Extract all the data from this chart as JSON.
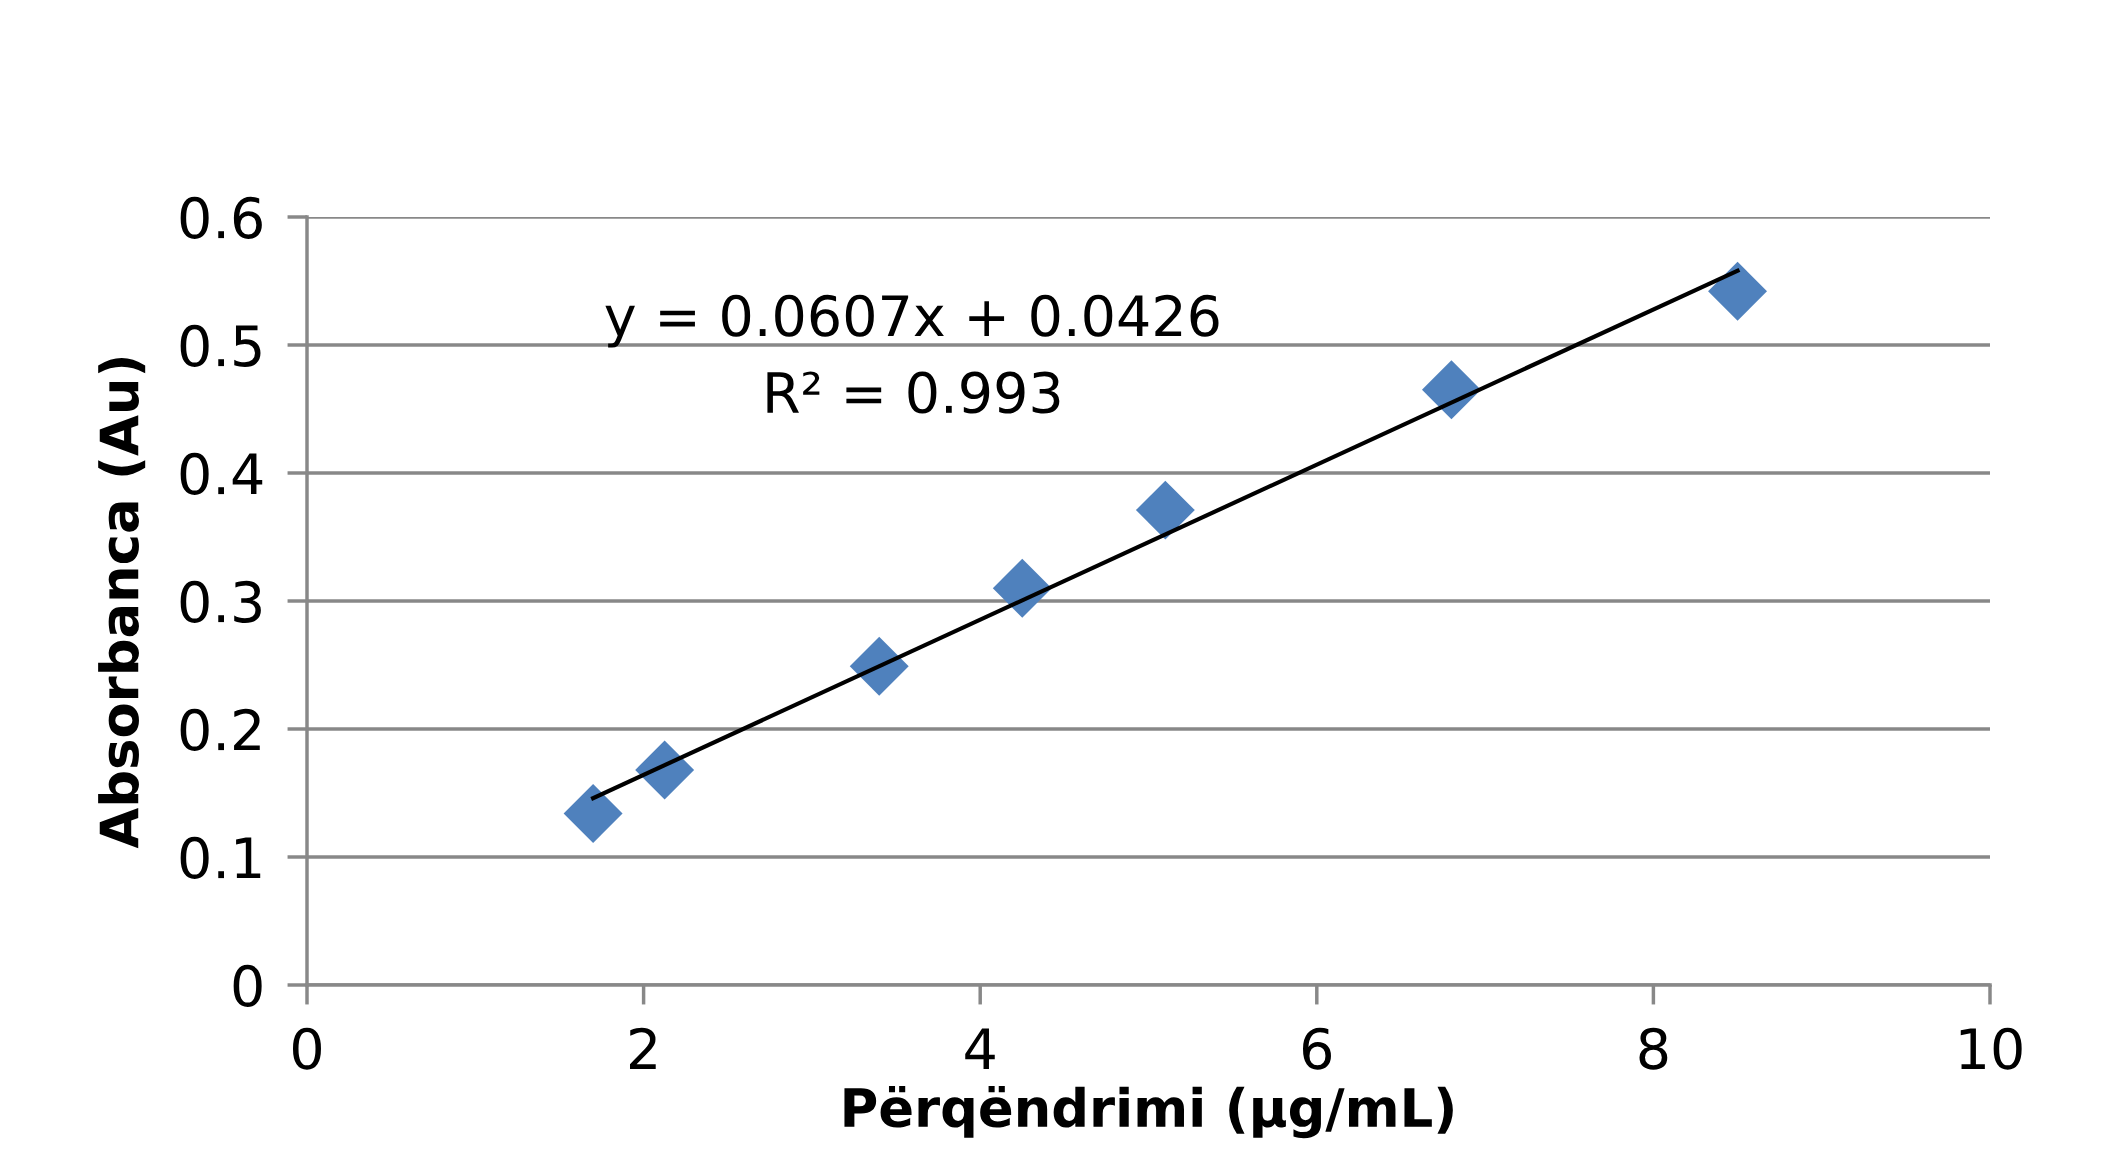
{
  "chart_data": {
    "type": "scatter",
    "xlabel": "Përqëndrimi (µg/mL)",
    "ylabel": "Absorbanca (Au)",
    "x": [
      1.7,
      2.125,
      3.4,
      4.25,
      5.1,
      6.8,
      8.5
    ],
    "series": [
      {
        "color": "#4f81bd",
        "marker": "diamond",
        "values": [
          0.134,
          0.168,
          0.249,
          0.31,
          0.371,
          0.465,
          0.542
        ]
      },
      {
        "type": "line",
        "color": "#000000",
        "marker": "none",
        "line_style": "solid",
        "x": [
          1.7,
          8.5
        ],
        "values": [
          0.146,
          0.558
        ]
      }
    ],
    "annotations": [
      "y = 0.0607x + 0.0426",
      "R² = 0.993"
    ],
    "xlim": [
      0,
      10
    ],
    "xticks": [
      0,
      2,
      4,
      6,
      8,
      10
    ],
    "ylim": [
      0,
      0.6
    ],
    "yticks": [
      0,
      0.1,
      0.2,
      0.3,
      0.4,
      0.5,
      0.6
    ],
    "grid": "y",
    "legend": false
  }
}
